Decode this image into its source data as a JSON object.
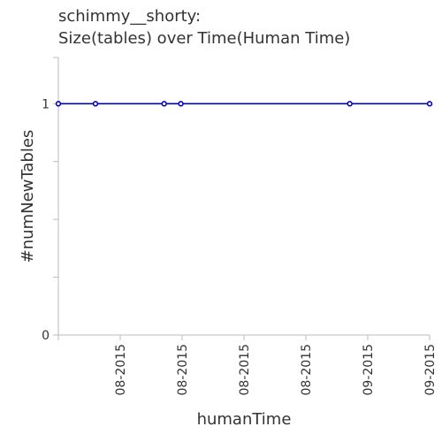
{
  "chart_data": {
    "type": "line",
    "title": "schimmy__shorty:",
    "subtitle": "Size(tables) over Time(Human Time)",
    "xlabel": "humanTime",
    "ylabel": "#numNewTables",
    "y_ticks": [
      "0",
      "1"
    ],
    "ylim": [
      0,
      1.2
    ],
    "x_tick_labels": [
      "08-2015",
      "08-2015",
      "08-2015",
      "08-2015",
      "09-2015",
      "09-2015"
    ],
    "grid": false,
    "series": [
      {
        "x_fraction": [
          0.0,
          0.1,
          0.285,
          0.33,
          0.785,
          1.0
        ],
        "values": [
          1,
          1,
          1,
          1,
          1,
          1
        ],
        "color": "#0000cc"
      }
    ]
  }
}
